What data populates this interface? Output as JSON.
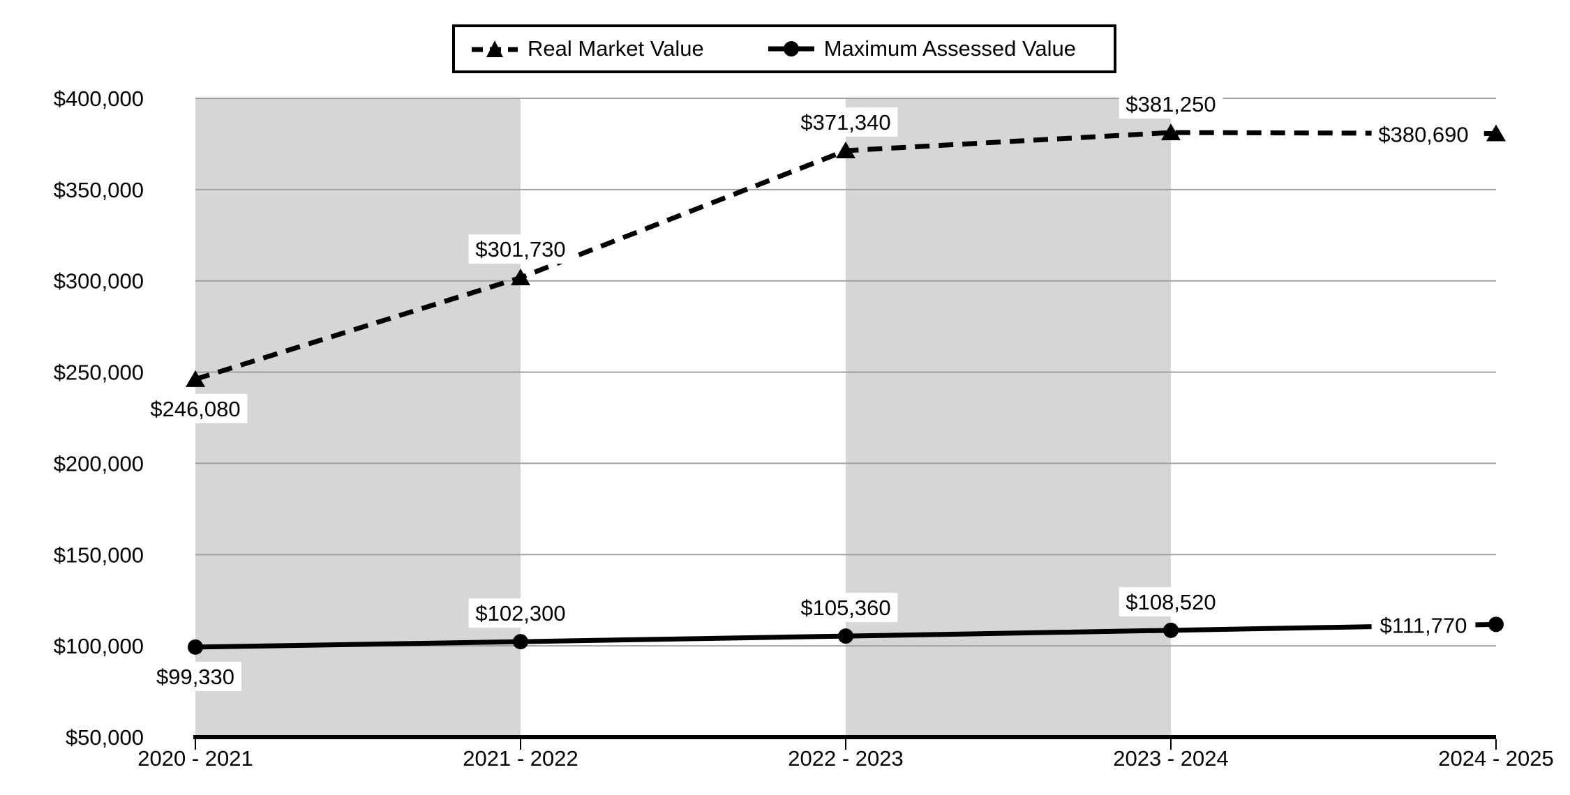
{
  "chart_data": {
    "type": "line",
    "categories": [
      "2020 - 2021",
      "2021 - 2022",
      "2022 - 2023",
      "2023 - 2024",
      "2024 - 2025"
    ],
    "series": [
      {
        "name": "Real Market Value",
        "values": [
          246080,
          301730,
          371340,
          381250,
          380690
        ],
        "labels": [
          "$246,080",
          "$301,730",
          "$371,340",
          "$381,250",
          "$380,690"
        ],
        "label_positions": [
          "below",
          "above",
          "above",
          "above",
          "left"
        ],
        "line": "dashed",
        "marker": "triangle"
      },
      {
        "name": "Maximum Assessed Value",
        "values": [
          99330,
          102300,
          105360,
          108520,
          111770
        ],
        "labels": [
          "$99,330",
          "$102,300",
          "$105,360",
          "$108,520",
          "$111,770"
        ],
        "label_positions": [
          "below",
          "above",
          "above",
          "above",
          "left"
        ],
        "line": "solid",
        "marker": "circle"
      }
    ],
    "ylim": [
      50000,
      400000
    ],
    "ytick_step": 50000,
    "ytick_labels": [
      "$50,000",
      "$100,000",
      "$150,000",
      "$200,000",
      "$250,000",
      "$300,000",
      "$350,000",
      "$400,000"
    ],
    "title": "",
    "xlabel": "",
    "ylabel": "",
    "legend_position": "top-center",
    "grid": "horizontal",
    "plot_bands": {
      "spans": [
        [
          0,
          1
        ],
        [
          2,
          3
        ]
      ]
    },
    "colors": {
      "series": "#000000",
      "gridline": "#a0a0a0",
      "band": "#d6d6d6",
      "axis": "#000000",
      "label_background": "#ffffff",
      "background": "#ffffff"
    }
  }
}
